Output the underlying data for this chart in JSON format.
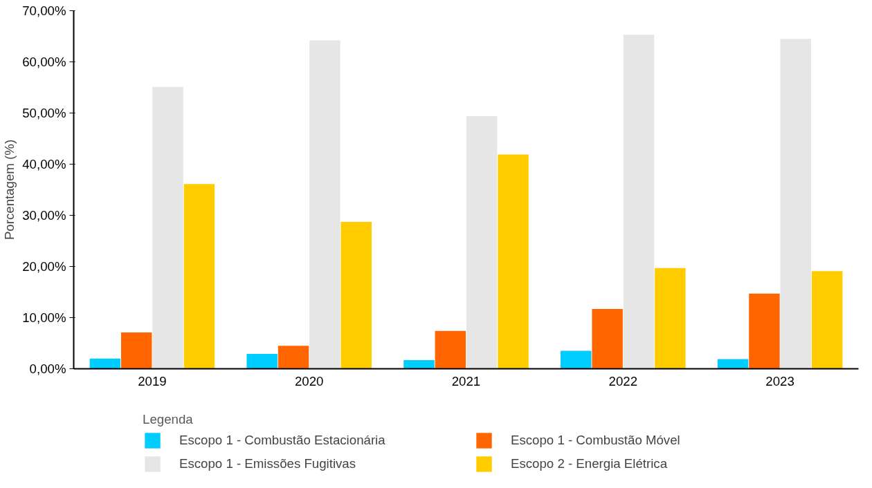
{
  "chart_data": {
    "type": "bar",
    "ylabel": "Porcentagem (%)",
    "legend_title": "Legenda",
    "categories": [
      "2019",
      "2020",
      "2021",
      "2022",
      "2023"
    ],
    "series": [
      {
        "name": "Escopo 1 - Combustão Estacionária",
        "color": "#00ccff",
        "values": [
          2.0,
          2.9,
          1.7,
          3.5,
          1.9
        ]
      },
      {
        "name": "Escopo 1 - Combustão Móvel",
        "color": "#ff6600",
        "values": [
          7.1,
          4.5,
          7.4,
          11.7,
          14.7
        ]
      },
      {
        "name": "Escopo 1 - Emissões Fugitivas",
        "color": "#e6e6e6",
        "values": [
          55.1,
          64.2,
          49.4,
          65.3,
          64.5
        ]
      },
      {
        "name": "Escopo 2 - Energia Elétrica",
        "color": "#ffcc00",
        "values": [
          36.1,
          28.7,
          41.9,
          19.7,
          19.1
        ]
      }
    ],
    "ylim": [
      0,
      70
    ],
    "yticks": [
      {
        "value": 0,
        "label": "0,00%"
      },
      {
        "value": 10,
        "label": "10,00%"
      },
      {
        "value": 20,
        "label": "20,00%"
      },
      {
        "value": 30,
        "label": "30,00%"
      },
      {
        "value": 40,
        "label": "40,00%"
      },
      {
        "value": 50,
        "label": "50,00%"
      },
      {
        "value": 60,
        "label": "60,00%"
      },
      {
        "value": 70,
        "label": "70,00%"
      }
    ],
    "grid": false,
    "legend": "bottom"
  }
}
